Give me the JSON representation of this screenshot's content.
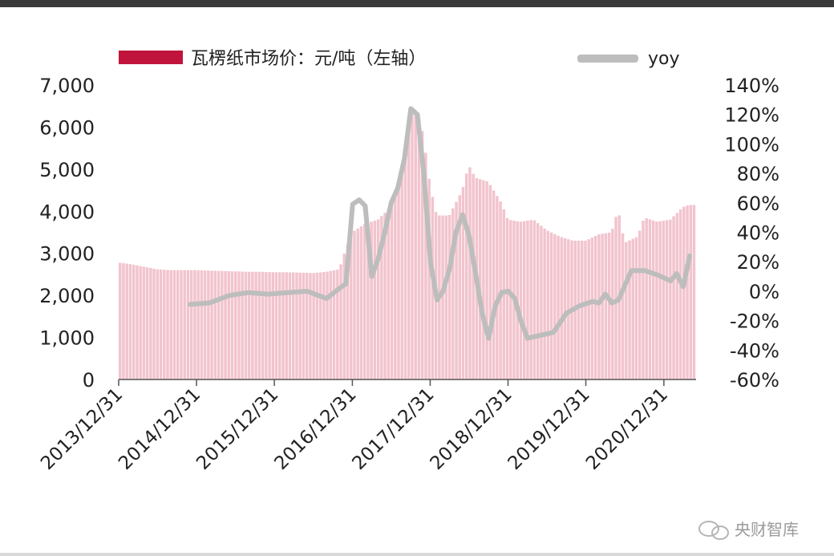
{
  "chart_data": {
    "type": "bar",
    "x_start": "2013/12/31",
    "x_end": "2021/05/31",
    "x_tick_labels": [
      "2013/12/31",
      "2014/12/31",
      "2015/12/31",
      "2016/12/31",
      "2017/12/31",
      "2018/12/31",
      "2019/12/31",
      "2020/12/31"
    ],
    "left_axis": {
      "ylim": [
        0,
        7000
      ],
      "tick_labels": [
        "0",
        "1,000",
        "2,000",
        "3,000",
        "4,000",
        "5,000",
        "6,000",
        "7,000"
      ]
    },
    "right_axis": {
      "ylim": [
        -60,
        140
      ],
      "unit": "%",
      "tick_labels": [
        "-60%",
        "-40%",
        "-20%",
        "0%",
        "20%",
        "40%",
        "60%",
        "80%",
        "100%",
        "120%",
        "140%"
      ]
    },
    "legend": [
      "瓦楞纸市场价：元/吨（左轴）",
      "yoy"
    ],
    "series": [
      {
        "name": "瓦楞纸市场价：元/吨（左轴）",
        "kind": "bar",
        "axis": "left",
        "color": "#f2c4ce",
        "points": [
          [
            "2014-01-01",
            2780
          ],
          [
            "2014-03-01",
            2740
          ],
          [
            "2014-05-01",
            2680
          ],
          [
            "2014-07-01",
            2620
          ],
          [
            "2014-09-01",
            2600
          ],
          [
            "2014-11-01",
            2600
          ],
          [
            "2015-01-01",
            2600
          ],
          [
            "2015-03-01",
            2590
          ],
          [
            "2015-05-01",
            2580
          ],
          [
            "2015-07-01",
            2570
          ],
          [
            "2015-09-01",
            2560
          ],
          [
            "2015-11-01",
            2560
          ],
          [
            "2016-01-01",
            2550
          ],
          [
            "2016-03-01",
            2550
          ],
          [
            "2016-05-01",
            2540
          ],
          [
            "2016-07-01",
            2530
          ],
          [
            "2016-09-01",
            2560
          ],
          [
            "2016-11-01",
            2620
          ],
          [
            "2016-12-01",
            3100
          ],
          [
            "2017-01-01",
            3500
          ],
          [
            "2017-03-01",
            3700
          ],
          [
            "2017-05-01",
            3800
          ],
          [
            "2017-07-01",
            4100
          ],
          [
            "2017-09-01",
            5200
          ],
          [
            "2017-10-01",
            6300
          ],
          [
            "2017-11-01",
            6400
          ],
          [
            "2017-12-01",
            5800
          ],
          [
            "2018-01-01",
            4600
          ],
          [
            "2018-02-01",
            3900
          ],
          [
            "2018-04-01",
            3900
          ],
          [
            "2018-06-01",
            4500
          ],
          [
            "2018-07-01",
            5100
          ],
          [
            "2018-08-01",
            4800
          ],
          [
            "2018-10-01",
            4700
          ],
          [
            "2018-12-01",
            4200
          ],
          [
            "2019-01-01",
            3800
          ],
          [
            "2019-03-01",
            3750
          ],
          [
            "2019-05-01",
            3800
          ],
          [
            "2019-07-01",
            3550
          ],
          [
            "2019-09-01",
            3400
          ],
          [
            "2019-11-01",
            3300
          ],
          [
            "2020-01-01",
            3300
          ],
          [
            "2020-03-01",
            3450
          ],
          [
            "2020-05-01",
            3500
          ],
          [
            "2020-06-01",
            4050
          ],
          [
            "2020-07-01",
            3250
          ],
          [
            "2020-09-01",
            3400
          ],
          [
            "2020-10-01",
            3850
          ],
          [
            "2020-12-01",
            3750
          ],
          [
            "2021-02-01",
            3800
          ],
          [
            "2021-04-01",
            4100
          ],
          [
            "2021-05-01",
            4150
          ]
        ]
      },
      {
        "name": "yoy",
        "kind": "line",
        "axis": "right",
        "color": "#bdbdbd",
        "points": [
          [
            "2014-12-01",
            -9
          ],
          [
            "2015-03-01",
            -8
          ],
          [
            "2015-06-01",
            -3
          ],
          [
            "2015-09-01",
            -1
          ],
          [
            "2015-12-01",
            -2
          ],
          [
            "2016-03-01",
            -1
          ],
          [
            "2016-06-01",
            0
          ],
          [
            "2016-09-01",
            -5
          ],
          [
            "2016-11-01",
            2
          ],
          [
            "2016-12-01",
            5
          ],
          [
            "2017-01-01",
            59
          ],
          [
            "2017-02-01",
            62
          ],
          [
            "2017-03-01",
            58
          ],
          [
            "2017-04-01",
            10
          ],
          [
            "2017-05-01",
            22
          ],
          [
            "2017-06-01",
            40
          ],
          [
            "2017-07-01",
            60
          ],
          [
            "2017-08-01",
            70
          ],
          [
            "2017-09-01",
            90
          ],
          [
            "2017-10-01",
            124
          ],
          [
            "2017-11-01",
            120
          ],
          [
            "2017-12-01",
            80
          ],
          [
            "2018-01-01",
            20
          ],
          [
            "2018-02-01",
            -6
          ],
          [
            "2018-03-01",
            0
          ],
          [
            "2018-04-01",
            15
          ],
          [
            "2018-05-01",
            40
          ],
          [
            "2018-06-01",
            52
          ],
          [
            "2018-07-01",
            38
          ],
          [
            "2018-08-01",
            12
          ],
          [
            "2018-09-01",
            -15
          ],
          [
            "2018-10-01",
            -32
          ],
          [
            "2018-11-01",
            -10
          ],
          [
            "2018-12-01",
            -1
          ],
          [
            "2019-01-01",
            0
          ],
          [
            "2019-02-01",
            -5
          ],
          [
            "2019-03-01",
            -20
          ],
          [
            "2019-04-01",
            -32
          ],
          [
            "2019-06-01",
            -30
          ],
          [
            "2019-08-01",
            -28
          ],
          [
            "2019-10-01",
            -15
          ],
          [
            "2019-12-01",
            -10
          ],
          [
            "2020-02-01",
            -7
          ],
          [
            "2020-03-01",
            -8
          ],
          [
            "2020-04-01",
            -2
          ],
          [
            "2020-05-01",
            -8
          ],
          [
            "2020-06-01",
            -6
          ],
          [
            "2020-08-01",
            14
          ],
          [
            "2020-10-01",
            14
          ],
          [
            "2020-12-01",
            11
          ],
          [
            "2021-02-01",
            7
          ],
          [
            "2021-03-01",
            12
          ],
          [
            "2021-04-01",
            3
          ],
          [
            "2021-05-01",
            24
          ]
        ]
      }
    ]
  },
  "watermark": {
    "text": "央财智库"
  },
  "colors": {
    "bar_legend": "#c0143c",
    "bar_fill": "#f2c4ce",
    "line": "#bdbdbd",
    "frame": "#3a3a3a"
  }
}
